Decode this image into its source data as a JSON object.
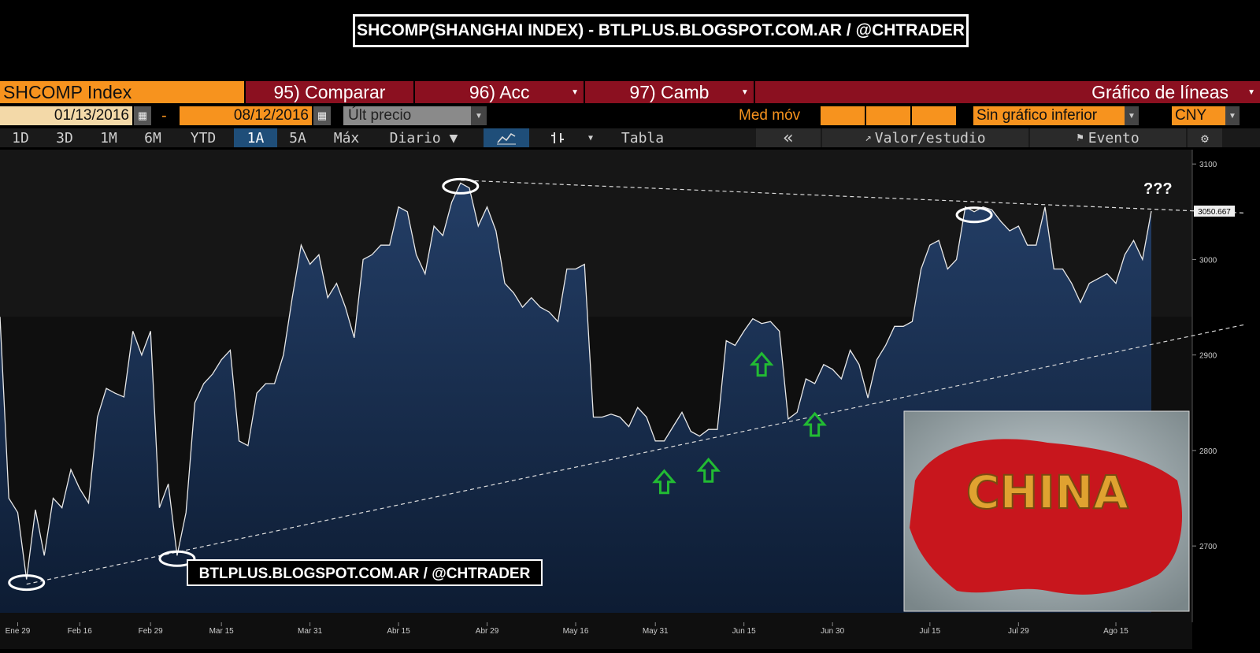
{
  "banner": {
    "title": "SHCOMP(SHANGHAI INDEX) - BTLPLUS.BLOGSPOT.COM.AR / @CHTRADER"
  },
  "toolbar": {
    "security": "SHCOMP Index",
    "compare": "95) Comparar",
    "actions": "96) Acc",
    "change": "97) Camb",
    "chart_type": "Gráfico de líneas",
    "start_date": "01/13/2016",
    "date_sep": "-",
    "end_date": "08/12/2016",
    "price_field": "Últ precio",
    "moving_avg": "Med móv",
    "lower_chart": "Sin gráfico inferior",
    "currency": "CNY",
    "periods": [
      "1D",
      "3D",
      "1M",
      "6M",
      "YTD",
      "1A",
      "5A",
      "Máx"
    ],
    "active_period": "1A",
    "frequency": "Diario ▼",
    "table": "Tabla",
    "collapse": "«",
    "value_study": "Valor/estudio",
    "event": "Evento"
  },
  "colors": {
    "orange": "#f7931e",
    "maroon": "#8b1020",
    "line": "#e8e8e8",
    "fill": "#1c3454",
    "arrow_green": "#22bb33"
  },
  "annotations": {
    "question": "???",
    "watermark": "BTLPLUS.BLOGSPOT.COM.AR / @CHTRADER",
    "last_value": "3050.667",
    "china_image_text": "CHINA"
  },
  "chart_data": {
    "type": "line",
    "title": "SHCOMP(SHANGHAI INDEX)",
    "ylim": [
      2630,
      3115
    ],
    "yticks": [
      2700,
      2800,
      2900,
      3000,
      3100
    ],
    "xtick_labels": [
      "Ene 29",
      "Feb 16",
      "Feb 29",
      "Mar 15",
      "Mar 31",
      "Abr 15",
      "Abr 29",
      "May 16",
      "May 31",
      "Jun 15",
      "Jun 30",
      "Jul 15",
      "Jul 29",
      "Ago 15"
    ],
    "xtick_index": [
      2,
      9,
      17,
      25,
      35,
      45,
      55,
      65,
      74,
      84,
      94,
      105,
      115,
      126
    ],
    "series": [
      {
        "values": [
          2940,
          2750,
          2735,
          2665,
          2738,
          2690,
          2750,
          2740,
          2780,
          2760,
          2745,
          2835,
          2865,
          2860,
          2856,
          2925,
          2900,
          2925,
          2740,
          2765,
          2690,
          2735,
          2850,
          2870,
          2880,
          2895,
          2905,
          2810,
          2805,
          2860,
          2870,
          2870,
          2900,
          2960,
          3015,
          2995,
          3005,
          2960,
          2975,
          2950,
          2918,
          3000,
          3005,
          3015,
          3015,
          3055,
          3050,
          3005,
          2985,
          3035,
          3025,
          3060,
          3080,
          3075,
          3035,
          3055,
          3030,
          2975,
          2965,
          2950,
          2960,
          2950,
          2945,
          2935,
          2990,
          2990,
          2995,
          2835,
          2835,
          2838,
          2835,
          2825,
          2845,
          2835,
          2810,
          2810,
          2825,
          2840,
          2820,
          2815,
          2822,
          2822,
          2915,
          2910,
          2925,
          2938,
          2933,
          2935,
          2925,
          2833,
          2840,
          2875,
          2870,
          2890,
          2885,
          2875,
          2905,
          2890,
          2855,
          2895,
          2910,
          2930,
          2930,
          2935,
          2990,
          3015,
          3020,
          2990,
          3000,
          3055,
          3050,
          3055,
          3052,
          3040,
          3030,
          3035,
          3015,
          3015,
          3055,
          2990,
          2990,
          2975,
          2955,
          2975,
          2980,
          2985,
          2975,
          3005,
          3020,
          3000,
          3050.667
        ]
      }
    ],
    "trendlines": [
      {
        "style": "dashed",
        "from": {
          "index": 3,
          "value": 2660
        },
        "to": {
          "index": 136,
          "value": 2925
        }
      },
      {
        "style": "dashed",
        "from": {
          "index": 52,
          "value": 3083
        },
        "to": {
          "index": 136,
          "value": 3050
        }
      }
    ],
    "circled_index": [
      3,
      20,
      52,
      110
    ],
    "up_arrow_index": [
      75,
      80,
      86,
      92
    ]
  }
}
